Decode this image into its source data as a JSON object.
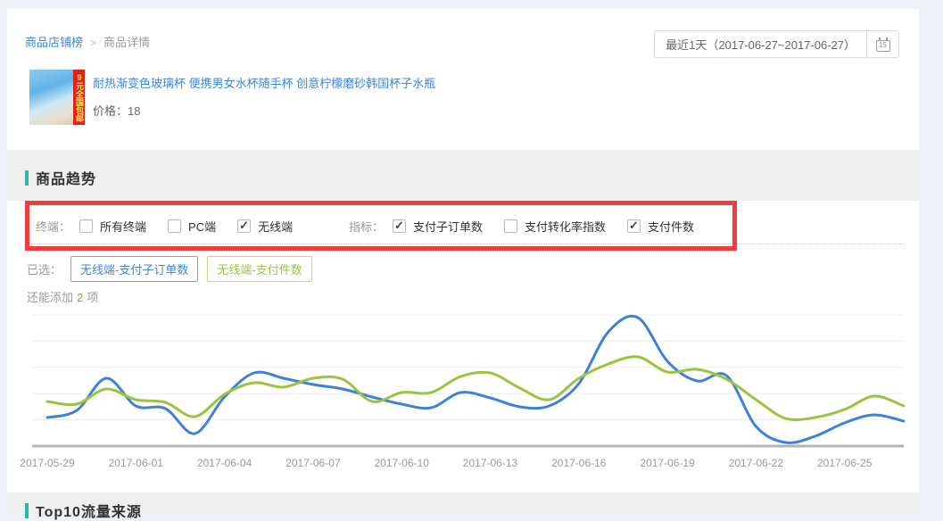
{
  "breadcrumb": {
    "parent": "商品店铺榜",
    "separator": ">",
    "current": "商品详情"
  },
  "date_picker": {
    "label": "最近1天（2017-06-27~2017-06-27）",
    "calendar_day": "15"
  },
  "product": {
    "title": "耐热渐变色玻璃杯 便携男女水杯随手杯 创意柠檬磨砂韩国杯子水瓶",
    "price": "价格：18",
    "badge_text": "9元全国包邮"
  },
  "trend_section": {
    "title": "商品趋势"
  },
  "filters": {
    "terminal": {
      "label": "终端：",
      "options": [
        {
          "label": "所有终端",
          "checked": false
        },
        {
          "label": "PC端",
          "checked": false
        },
        {
          "label": "无线端",
          "checked": true
        }
      ]
    },
    "metric": {
      "label": "指标：",
      "options": [
        {
          "label": "支付子订单数",
          "checked": true
        },
        {
          "label": "支付转化率指数",
          "checked": false
        },
        {
          "label": "支付件数",
          "checked": true
        }
      ]
    }
  },
  "selected": {
    "label": "已选：",
    "tags": [
      {
        "label": "无线端-支付子订单数",
        "color": "#3d85e0",
        "border": "#6fa7e6"
      },
      {
        "label": "无线端-支付件数",
        "color": "#9ac43f",
        "border": "#bcda85"
      }
    ]
  },
  "remaining": {
    "prefix": "还能添加",
    "count": "2",
    "suffix": "项"
  },
  "chart_data": {
    "type": "line",
    "smooth": true,
    "grid": true,
    "y_axis_labels_visible": false,
    "legend_position": "none (selected tags act as legend)",
    "x_range": [
      "2017-05-29",
      "2017-06-27"
    ],
    "x_tick_labels": [
      "2017-05-29",
      "2017-06-01",
      "2017-06-04",
      "2017-06-07",
      "2017-06-10",
      "2017-06-13",
      "2017-06-16",
      "2017-06-19",
      "2017-06-22",
      "2017-06-25"
    ],
    "x_dates": [
      "2017-05-29",
      "2017-05-30",
      "2017-05-31",
      "2017-06-01",
      "2017-06-02",
      "2017-06-03",
      "2017-06-04",
      "2017-06-05",
      "2017-06-06",
      "2017-06-07",
      "2017-06-08",
      "2017-06-09",
      "2017-06-10",
      "2017-06-11",
      "2017-06-12",
      "2017-06-13",
      "2017-06-14",
      "2017-06-15",
      "2017-06-16",
      "2017-06-17",
      "2017-06-18",
      "2017-06-19",
      "2017-06-20",
      "2017-06-21",
      "2017-06-22",
      "2017-06-23",
      "2017-06-24",
      "2017-06-25",
      "2017-06-26",
      "2017-06-27"
    ],
    "y_unit": "relative (no axis labels shown)",
    "ylim": [
      0,
      150
    ],
    "series": [
      {
        "name": "无线端-支付子订单数",
        "color": "#3c82dd",
        "values": [
          32,
          40,
          76,
          45,
          42,
          14,
          55,
          82,
          76,
          69,
          64,
          55,
          47,
          43,
          60,
          54,
          44,
          45,
          70,
          128,
          144,
          95,
          73,
          79,
          22,
          4,
          11,
          26,
          35,
          28
        ]
      },
      {
        "name": "无线端-支付件数",
        "color": "#9ac43f",
        "values": [
          50,
          47,
          64,
          52,
          49,
          33,
          58,
          71,
          66,
          76,
          75,
          50,
          60,
          60,
          78,
          82,
          65,
          52,
          76,
          92,
          100,
          83,
          86,
          75,
          52,
          31,
          32,
          41,
          56,
          45
        ]
      }
    ]
  },
  "next_section": {
    "title": "Top10流量来源"
  },
  "colors": {
    "page_bg": "#edf0f5",
    "section_band": "#efefef",
    "accent_teal": "#2cb7ad",
    "annotation_red": "#f23b3d",
    "link_blue": "#3d85e0",
    "count_orange": "#ff7700",
    "axis_label_gray": "#999999"
  }
}
